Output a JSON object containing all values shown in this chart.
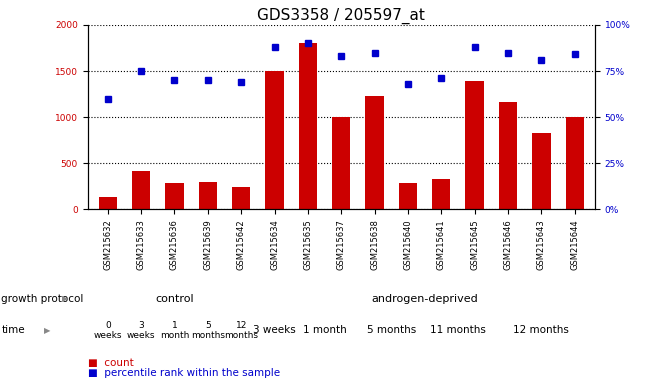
{
  "title": "GDS3358 / 205597_at",
  "samples": [
    "GSM215632",
    "GSM215633",
    "GSM215636",
    "GSM215639",
    "GSM215642",
    "GSM215634",
    "GSM215635",
    "GSM215637",
    "GSM215638",
    "GSM215640",
    "GSM215641",
    "GSM215645",
    "GSM215646",
    "GSM215643",
    "GSM215644"
  ],
  "counts": [
    130,
    420,
    290,
    295,
    245,
    1500,
    1800,
    1000,
    1230,
    290,
    330,
    1390,
    1160,
    830,
    1000
  ],
  "percentiles": [
    60,
    75,
    70,
    70,
    69,
    88,
    90,
    83,
    85,
    68,
    71,
    88,
    85,
    81,
    84
  ],
  "ylim_left": [
    0,
    2000
  ],
  "ylim_right": [
    0,
    100
  ],
  "yticks_left": [
    0,
    500,
    1000,
    1500,
    2000
  ],
  "yticks_right": [
    0,
    25,
    50,
    75,
    100
  ],
  "bar_color": "#cc0000",
  "dot_color": "#0000cc",
  "control_label": "control",
  "androgen_label": "androgen-deprived",
  "control_color": "#bbffbb",
  "androgen_color": "#55ee55",
  "time_color": "#ee66ee",
  "control_time_labels": [
    "0\nweeks",
    "3\nweeks",
    "1\nmonth",
    "5\nmonths",
    "12\nmonths"
  ],
  "control_time_groups": [
    [
      0
    ],
    [
      1
    ],
    [
      2
    ],
    [
      3
    ],
    [
      4
    ]
  ],
  "androgen_time_labels": [
    "3 weeks",
    "1 month",
    "5 months",
    "11 months",
    "12 months"
  ],
  "androgen_time_groups": [
    [
      5
    ],
    [
      6,
      7
    ],
    [
      8,
      9
    ],
    [
      10,
      11
    ],
    [
      12,
      13,
      14
    ]
  ],
  "growth_protocol_label": "growth protocol",
  "time_label": "time",
  "legend_count": "count",
  "legend_percentile": "percentile rank within the sample",
  "title_fontsize": 11,
  "tick_fontsize": 6.5,
  "sample_name_fontsize": 6,
  "annotation_fontsize": 8,
  "time_fontsize": 7.5,
  "control_time_fontsize": 6.5
}
